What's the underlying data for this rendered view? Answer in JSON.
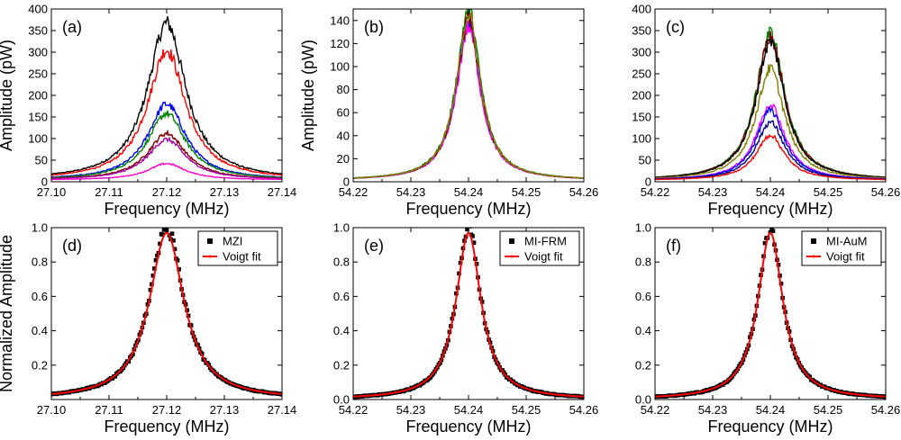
{
  "figure": {
    "layout": "2 rows x 3 columns"
  },
  "chart_data": [
    {
      "type": "line",
      "panel_label": "(a)",
      "xlabel": "Frequency (MHz)",
      "ylabel": "Amplitude (pW)",
      "xlim": [
        27.1,
        27.14
      ],
      "ylim": [
        0,
        400
      ],
      "xticks": [
        "27.10",
        "27.11",
        "27.12",
        "27.13",
        "27.14"
      ],
      "yticks": [
        "0",
        "50",
        "100",
        "150",
        "200",
        "250",
        "300",
        "350",
        "400"
      ],
      "center": 27.12,
      "hwhm": 0.004,
      "baseline": 4,
      "series": [
        {
          "name": "trace-1",
          "color": "#000000",
          "peak": 368
        },
        {
          "name": "trace-2",
          "color": "#ff0000",
          "peak": 305
        },
        {
          "name": "trace-3",
          "color": "#0000ff",
          "peak": 180
        },
        {
          "name": "trace-4",
          "color": "#008000",
          "peak": 158
        },
        {
          "name": "trace-5",
          "color": "#800000",
          "peak": 112
        },
        {
          "name": "trace-6",
          "color": "#a000a0",
          "peak": 98
        },
        {
          "name": "trace-7",
          "color": "#ff00cc",
          "peak": 42
        }
      ]
    },
    {
      "type": "line",
      "panel_label": "(b)",
      "xlabel": "Frequency (MHz)",
      "ylabel": "Amplitude (pW)",
      "xlim": [
        54.22,
        54.26
      ],
      "ylim": [
        0,
        150
      ],
      "xticks": [
        "54.22",
        "54.23",
        "54.24",
        "54.25",
        "54.26"
      ],
      "yticks": [
        "0",
        "20",
        "40",
        "60",
        "80",
        "100",
        "120",
        "140"
      ],
      "center": 54.24,
      "hwhm": 0.0025,
      "baseline": 1,
      "series": [
        {
          "name": "trace-1",
          "color": "#008000",
          "peak": 150
        },
        {
          "name": "trace-2",
          "color": "#0000ff",
          "peak": 138
        },
        {
          "name": "trace-3",
          "color": "#ff00ff",
          "peak": 134
        },
        {
          "name": "trace-4",
          "color": "#800000",
          "peak": 142
        },
        {
          "name": "trace-5",
          "color": "#808000",
          "peak": 145
        }
      ]
    },
    {
      "type": "line",
      "panel_label": "(c)",
      "xlabel": "Frequency (MHz)",
      "ylabel": "",
      "xlim": [
        54.22,
        54.26
      ],
      "ylim": [
        0,
        400
      ],
      "xticks": [
        "54.22",
        "54.23",
        "54.24",
        "54.25",
        "54.26"
      ],
      "yticks": [
        "0",
        "50",
        "100",
        "150",
        "200",
        "250",
        "300",
        "350",
        "400"
      ],
      "center": 54.24,
      "hwhm": 0.003,
      "baseline": 3,
      "series": [
        {
          "name": "trace-1",
          "color": "#008000",
          "peak": 345
        },
        {
          "name": "trace-2",
          "color": "#800000",
          "peak": 335
        },
        {
          "name": "trace-3",
          "color": "#000000",
          "peak": 325
        },
        {
          "name": "trace-4",
          "color": "#808000",
          "peak": 262
        },
        {
          "name": "trace-5",
          "color": "#ff00ff",
          "peak": 180
        },
        {
          "name": "trace-6",
          "color": "#0000ff",
          "peak": 165
        },
        {
          "name": "trace-7",
          "color": "#000080",
          "peak": 138
        },
        {
          "name": "trace-8",
          "color": "#ff0000",
          "peak": 108
        }
      ]
    },
    {
      "type": "scatter",
      "panel_label": "(d)",
      "xlabel": "Frequency (MHz)",
      "ylabel": "Normalized Amplitude",
      "xlim": [
        27.1,
        27.14
      ],
      "ylim": [
        0,
        1.0
      ],
      "xticks": [
        "27.10",
        "27.11",
        "27.12",
        "27.13",
        "27.14"
      ],
      "yticks": [
        "0.2",
        "0.4",
        "0.6",
        "0.8",
        "1.0"
      ],
      "center": 27.12,
      "hwhm": 0.0036,
      "legend": [
        {
          "label": "MZI",
          "kind": "marker",
          "color": "#000000"
        },
        {
          "label": "Voigt fit",
          "kind": "line",
          "color": "#ff0000"
        }
      ]
    },
    {
      "type": "scatter",
      "panel_label": "(e)",
      "xlabel": "Frequency (MHz)",
      "ylabel": "",
      "xlim": [
        54.22,
        54.26
      ],
      "ylim": [
        0,
        1.0
      ],
      "xticks": [
        "54.22",
        "54.23",
        "54.24",
        "54.25",
        "54.26"
      ],
      "yticks": [
        "0.0",
        "0.2",
        "0.4",
        "0.6",
        "0.8",
        "1.0"
      ],
      "center": 54.24,
      "hwhm": 0.0026,
      "legend": [
        {
          "label": "MI-FRM",
          "kind": "marker",
          "color": "#000000"
        },
        {
          "label": "Voigt fit",
          "kind": "line",
          "color": "#ff0000"
        }
      ]
    },
    {
      "type": "scatter",
      "panel_label": "(f)",
      "xlabel": "Frequency (MHz)",
      "ylabel": "",
      "xlim": [
        54.22,
        54.26
      ],
      "ylim": [
        0,
        1.0
      ],
      "xticks": [
        "54.22",
        "54.23",
        "54.24",
        "54.25",
        "54.26"
      ],
      "yticks": [
        "0.0",
        "0.2",
        "0.4",
        "0.6",
        "0.8",
        "1.0"
      ],
      "center": 54.24,
      "hwhm": 0.0026,
      "legend": [
        {
          "label": "MI-AuM",
          "kind": "marker",
          "color": "#000000"
        },
        {
          "label": "Voigt fit",
          "kind": "line",
          "color": "#ff0000"
        }
      ]
    }
  ]
}
